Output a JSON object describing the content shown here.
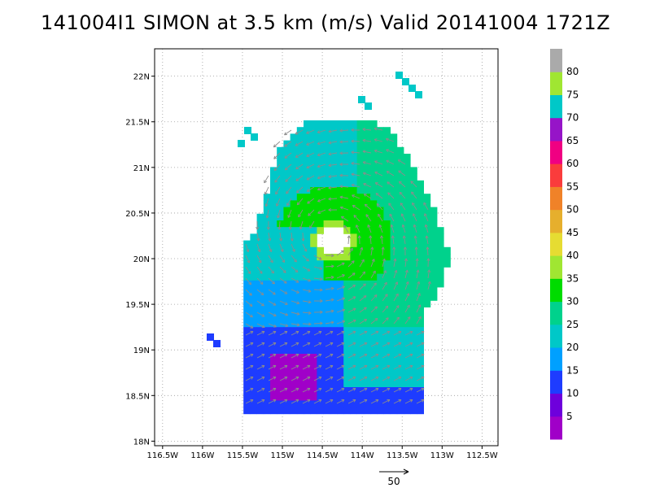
{
  "title": "141004I1 SIMON at 3.5 km (m/s) Valid 20141004 1721Z",
  "chart_data": {
    "type": "heatmap",
    "title": "141004I1 SIMON at 3.5 km (m/s) Valid 20141004 1721Z",
    "xlabel": "",
    "ylabel": "",
    "xlim": [
      -116.6,
      -112.3
    ],
    "ylim": [
      17.95,
      22.3
    ],
    "x_ticks": [
      -116.5,
      -116,
      -115.5,
      -115,
      -114.5,
      -114,
      -113.5,
      -113,
      -112.5
    ],
    "x_tick_labels": [
      "116.5W",
      "116W",
      "115.5W",
      "115W",
      "114.5W",
      "114W",
      "113.5W",
      "113W",
      "112.5W"
    ],
    "y_ticks": [
      18,
      18.5,
      19,
      19.5,
      20,
      20.5,
      21,
      21.5,
      22
    ],
    "y_tick_labels": [
      "18N",
      "18.5N",
      "19N",
      "19.5N",
      "20N",
      "20.5N",
      "21N",
      "21.5N",
      "22N"
    ],
    "grid": true,
    "storm_center": {
      "lon": -114.4,
      "lat": 20.23
    },
    "colorbar": {
      "labels": [
        "5",
        "10",
        "15",
        "20",
        "25",
        "30",
        "35",
        "40",
        "45",
        "50",
        "55",
        "60",
        "65",
        "70",
        "75",
        "80"
      ],
      "colors": [
        "#a000c8",
        "#6e00dc",
        "#1e3cff",
        "#00a0ff",
        "#00c8c8",
        "#00d28c",
        "#00dc00",
        "#a0e632",
        "#e6dc32",
        "#e6af2d",
        "#f08228",
        "#fa3c3c",
        "#f00082",
        "#9614c8",
        "#00c8c8",
        "#a0e632",
        "#aaaaaa"
      ]
    },
    "reference_vector": {
      "value": 50,
      "label": "50"
    }
  }
}
